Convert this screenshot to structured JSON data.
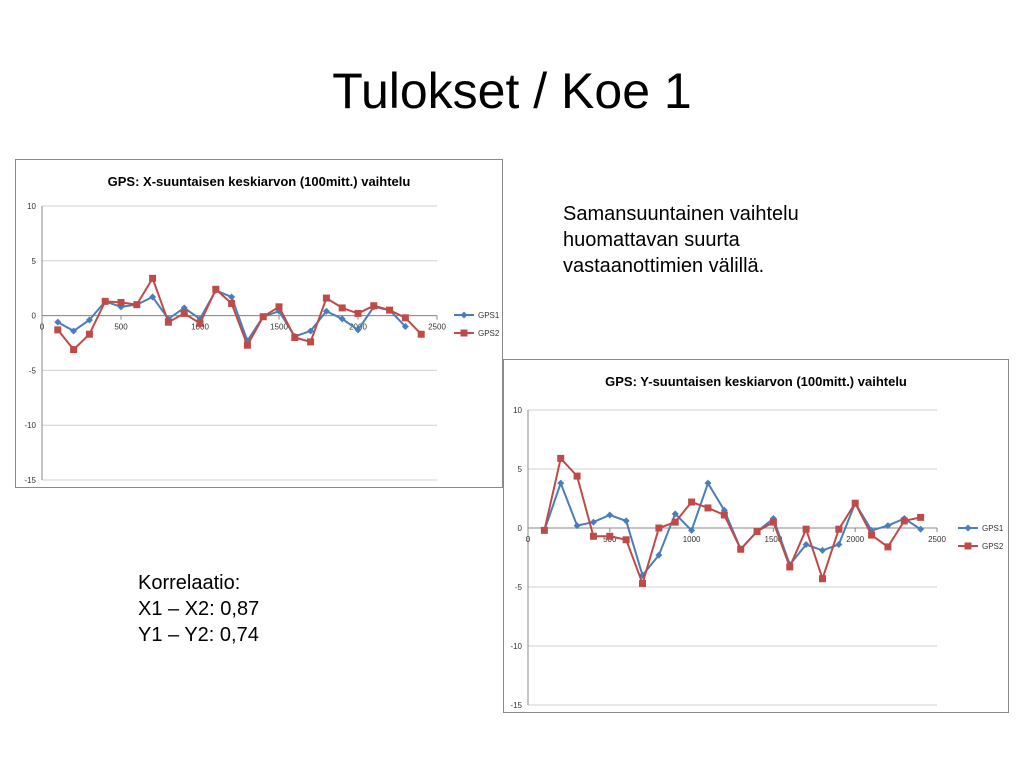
{
  "slide": {
    "title": "Tulokset / Koe 1",
    "note_lines": [
      "Samansuuntainen vaihtelu",
      "huomattavan suurta",
      "vastaanottimien välillä."
    ],
    "correlation_lines": [
      "Korrelaatio:",
      "X1 – X2: 0,87",
      "Y1 – Y2: 0,74"
    ]
  },
  "chart_data": [
    {
      "type": "line",
      "title": "GPS: X-suuntaisen keskiarvon (100mitt.) vaihtelu",
      "xlabel": "",
      "ylabel": "",
      "xlim": [
        0,
        2500
      ],
      "ylim": [
        -15,
        10
      ],
      "x_ticks": [
        0,
        500,
        1000,
        1500,
        2000,
        2500
      ],
      "y_ticks": [
        10,
        5,
        0,
        -5,
        -10,
        -15
      ],
      "x_tick_labels": [
        "0",
        "500",
        "1000",
        "1500",
        "2000",
        "2500"
      ],
      "y_tick_labels": [
        "10",
        "5",
        "0",
        "-5",
        "-10",
        "-15"
      ],
      "grid": true,
      "legend": "right",
      "series": [
        {
          "name": "GPS1",
          "color": "#4a7ebb",
          "marker": "diamond",
          "x": [
            100,
            200,
            300,
            400,
            500,
            600,
            700,
            800,
            900,
            1000,
            1100,
            1200,
            1300,
            1400,
            1500,
            1600,
            1700,
            1800,
            1900,
            2000,
            2100,
            2200,
            2300,
            2400
          ],
          "y": [
            -0.6,
            -1.4,
            -0.4,
            1.3,
            0.8,
            1.0,
            1.7,
            -0.3,
            0.7,
            -0.3,
            2.3,
            1.7,
            -2.3,
            -0.1,
            0.4,
            -1.9,
            -1.4,
            0.4,
            -0.3,
            -1.3,
            0.8,
            0.5,
            -1.0,
            null
          ]
        },
        {
          "name": "GPS2",
          "color": "#be4b48",
          "marker": "square",
          "x": [
            100,
            200,
            300,
            400,
            500,
            600,
            700,
            800,
            900,
            1000,
            1100,
            1200,
            1300,
            1400,
            1500,
            1600,
            1700,
            1800,
            1900,
            2000,
            2100,
            2200,
            2300,
            2400
          ],
          "y": [
            -1.3,
            -3.1,
            -1.7,
            1.3,
            1.2,
            1.0,
            3.4,
            -0.6,
            0.2,
            -0.7,
            2.4,
            1.1,
            -2.7,
            -0.1,
            0.8,
            -2.0,
            -2.4,
            1.6,
            0.7,
            0.2,
            0.9,
            0.5,
            -0.2,
            -1.7
          ]
        }
      ]
    },
    {
      "type": "line",
      "title": "GPS: Y-suuntaisen keskiarvon (100mitt.) vaihtelu",
      "xlabel": "",
      "ylabel": "",
      "xlim": [
        0,
        2500
      ],
      "ylim": [
        -15,
        10
      ],
      "x_ticks": [
        0,
        500,
        1000,
        1500,
        2000,
        2500
      ],
      "y_ticks": [
        10,
        5,
        0,
        -5,
        -10,
        -15
      ],
      "x_tick_labels": [
        "0",
        "500",
        "1000",
        "1500",
        "2000",
        "2500"
      ],
      "y_tick_labels": [
        "10",
        "5",
        "0",
        "-5",
        "-10",
        "-15"
      ],
      "grid": true,
      "legend": "right",
      "series": [
        {
          "name": "GPS1",
          "color": "#4a7ebb",
          "marker": "diamond",
          "x": [
            100,
            200,
            300,
            400,
            500,
            600,
            700,
            800,
            900,
            1000,
            1100,
            1200,
            1300,
            1400,
            1500,
            1600,
            1700,
            1800,
            1900,
            2000,
            2100,
            2200,
            2300,
            2400
          ],
          "y": [
            -0.2,
            3.8,
            0.2,
            0.5,
            1.1,
            0.6,
            -4.0,
            -2.3,
            1.2,
            -0.2,
            3.8,
            1.5,
            -1.8,
            -0.3,
            0.8,
            -3.1,
            -1.4,
            -1.9,
            -1.4,
            2.1,
            -0.2,
            0.2,
            0.8,
            -0.1
          ]
        },
        {
          "name": "GPS2",
          "color": "#be4b48",
          "marker": "square",
          "x": [
            100,
            200,
            300,
            400,
            500,
            600,
            700,
            800,
            900,
            1000,
            1100,
            1200,
            1300,
            1400,
            1500,
            1600,
            1700,
            1800,
            1900,
            2000,
            2100,
            2200,
            2300,
            2400
          ],
          "y": [
            -0.2,
            5.9,
            4.4,
            -0.7,
            -0.7,
            -1.0,
            -4.7,
            0.0,
            0.5,
            2.2,
            1.7,
            1.1,
            -1.8,
            -0.3,
            0.5,
            -3.3,
            -0.1,
            -4.3,
            -0.1,
            2.1,
            -0.6,
            -1.6,
            0.6,
            0.9
          ]
        }
      ]
    }
  ]
}
